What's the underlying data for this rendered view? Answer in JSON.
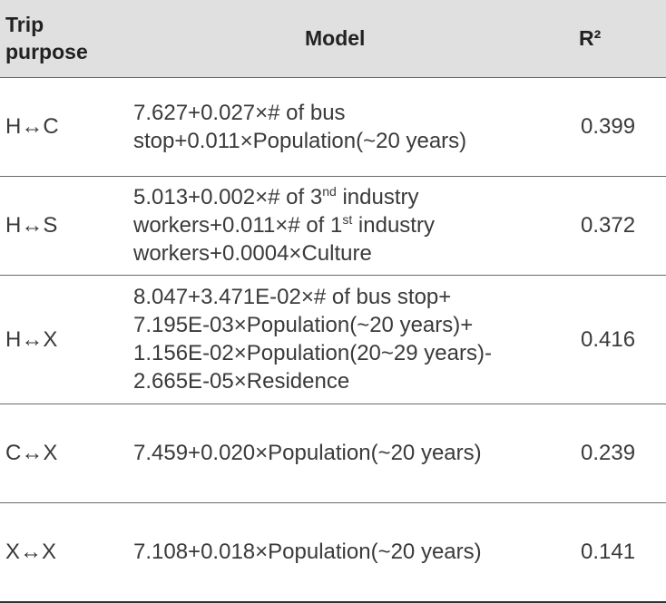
{
  "header": {
    "trip_purpose_line1": "Trip",
    "trip_purpose_line2": "purpose",
    "model": "Model",
    "r2": "R²"
  },
  "rows": [
    {
      "purpose": "H↔C",
      "model_lines": [
        "7.627+0.027×# of bus",
        "stop+0.011×Population(~20 years)"
      ],
      "r2": "0.399"
    },
    {
      "purpose": "H↔S",
      "model_line1_pre": "5.013+0.002×# of 3",
      "model_line1_sup": "nd",
      "model_line1_post": " industry",
      "model_line2_pre": "workers+0.011×# of 1",
      "model_line2_sup": "st",
      "model_line2_post": " industry",
      "model_line3": "workers+0.0004×Culture",
      "r2": "0.372"
    },
    {
      "purpose": "H↔X",
      "model_lines": [
        "8.047+3.471E-02×# of bus stop+",
        "7.195E-03×Population(~20 years)+",
        "1.156E-02×Population(20~29 years)-",
        "2.665E-05×Residence"
      ],
      "r2": "0.416"
    },
    {
      "purpose": "C↔X",
      "model_lines": [
        "7.459+0.020×Population(~20 years)"
      ],
      "r2": "0.239"
    },
    {
      "purpose": "X↔X",
      "model_lines": [
        "7.108+0.018×Population(~20 years)"
      ],
      "r2": "0.141"
    }
  ]
}
